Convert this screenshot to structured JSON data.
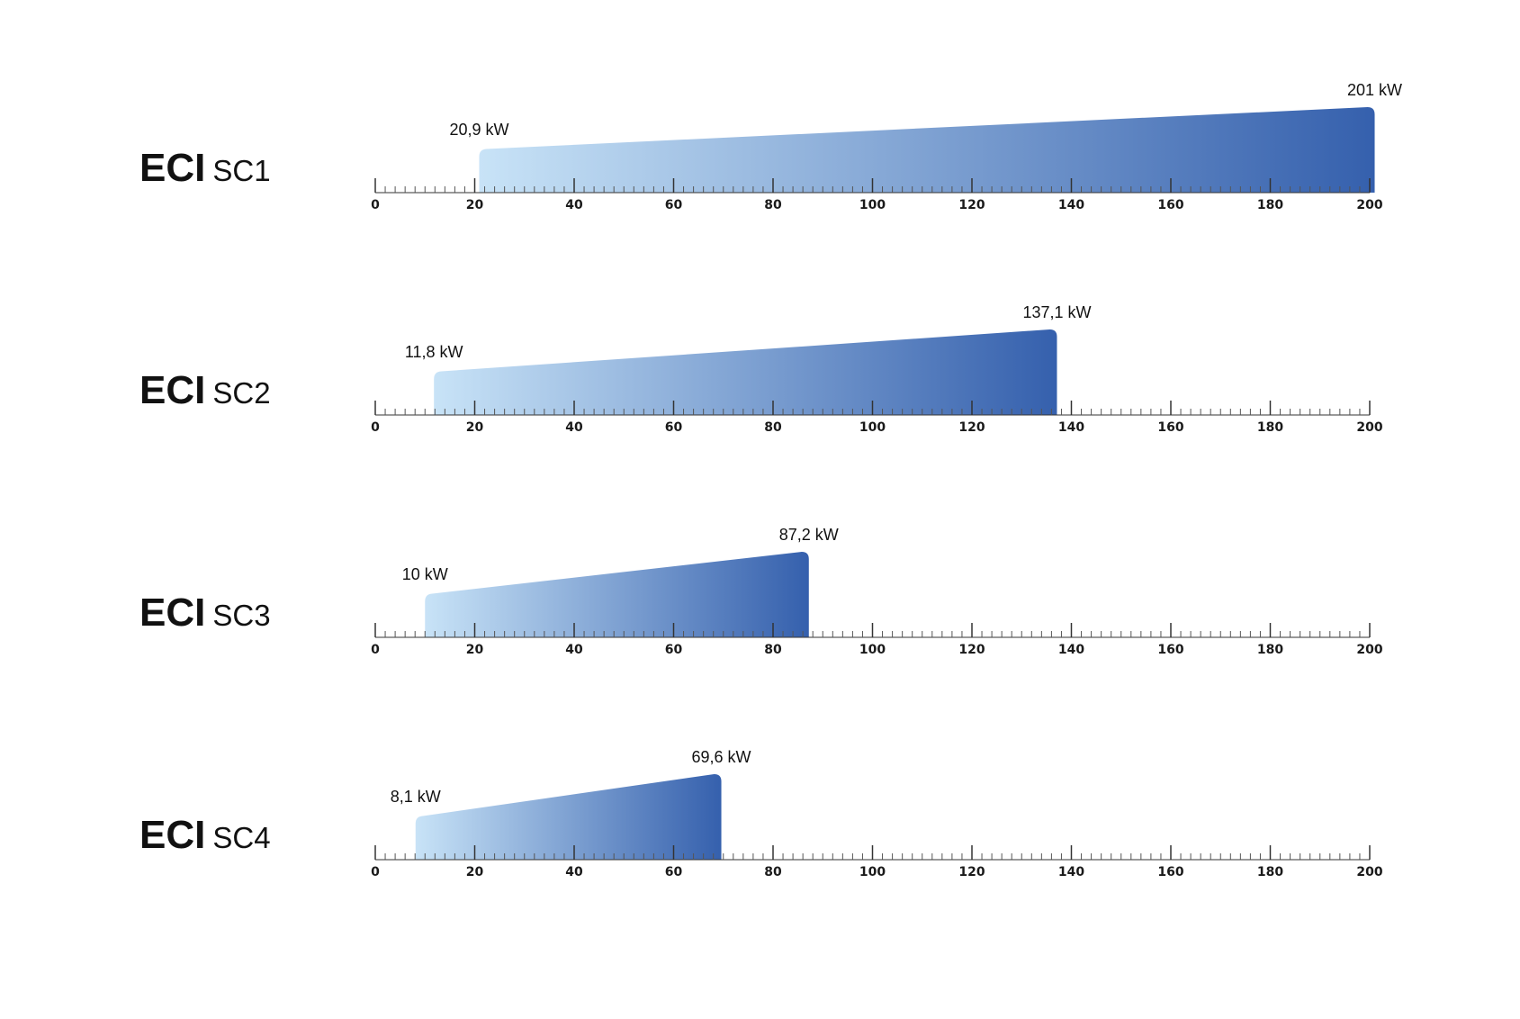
{
  "chart_data": {
    "type": "bar",
    "unit": "kW",
    "xlim": [
      0,
      200
    ],
    "major_ticks": [
      0,
      20,
      40,
      60,
      80,
      100,
      120,
      140,
      160,
      180,
      200
    ],
    "minor_step": 2,
    "grid": false,
    "legend": "none",
    "colors": {
      "gradient_start": "#c8e3f7",
      "gradient_end": "#3560ad",
      "text": "#111111",
      "axis": "#333333"
    },
    "series": [
      {
        "brand": "ECI",
        "model": "SC1",
        "min": 20.9,
        "max": 201,
        "min_label": "20,9 kW",
        "max_label": "201 kW"
      },
      {
        "brand": "ECI",
        "model": "SC2",
        "min": 11.8,
        "max": 137.1,
        "min_label": "11,8 kW",
        "max_label": "137,1 kW"
      },
      {
        "brand": "ECI",
        "model": "SC3",
        "min": 10,
        "max": 87.2,
        "min_label": "10 kW",
        "max_label": "87,2 kW"
      },
      {
        "brand": "ECI",
        "model": "SC4",
        "min": 8.1,
        "max": 69.6,
        "min_label": "8,1 kW",
        "max_label": "69,6 kW"
      }
    ]
  }
}
